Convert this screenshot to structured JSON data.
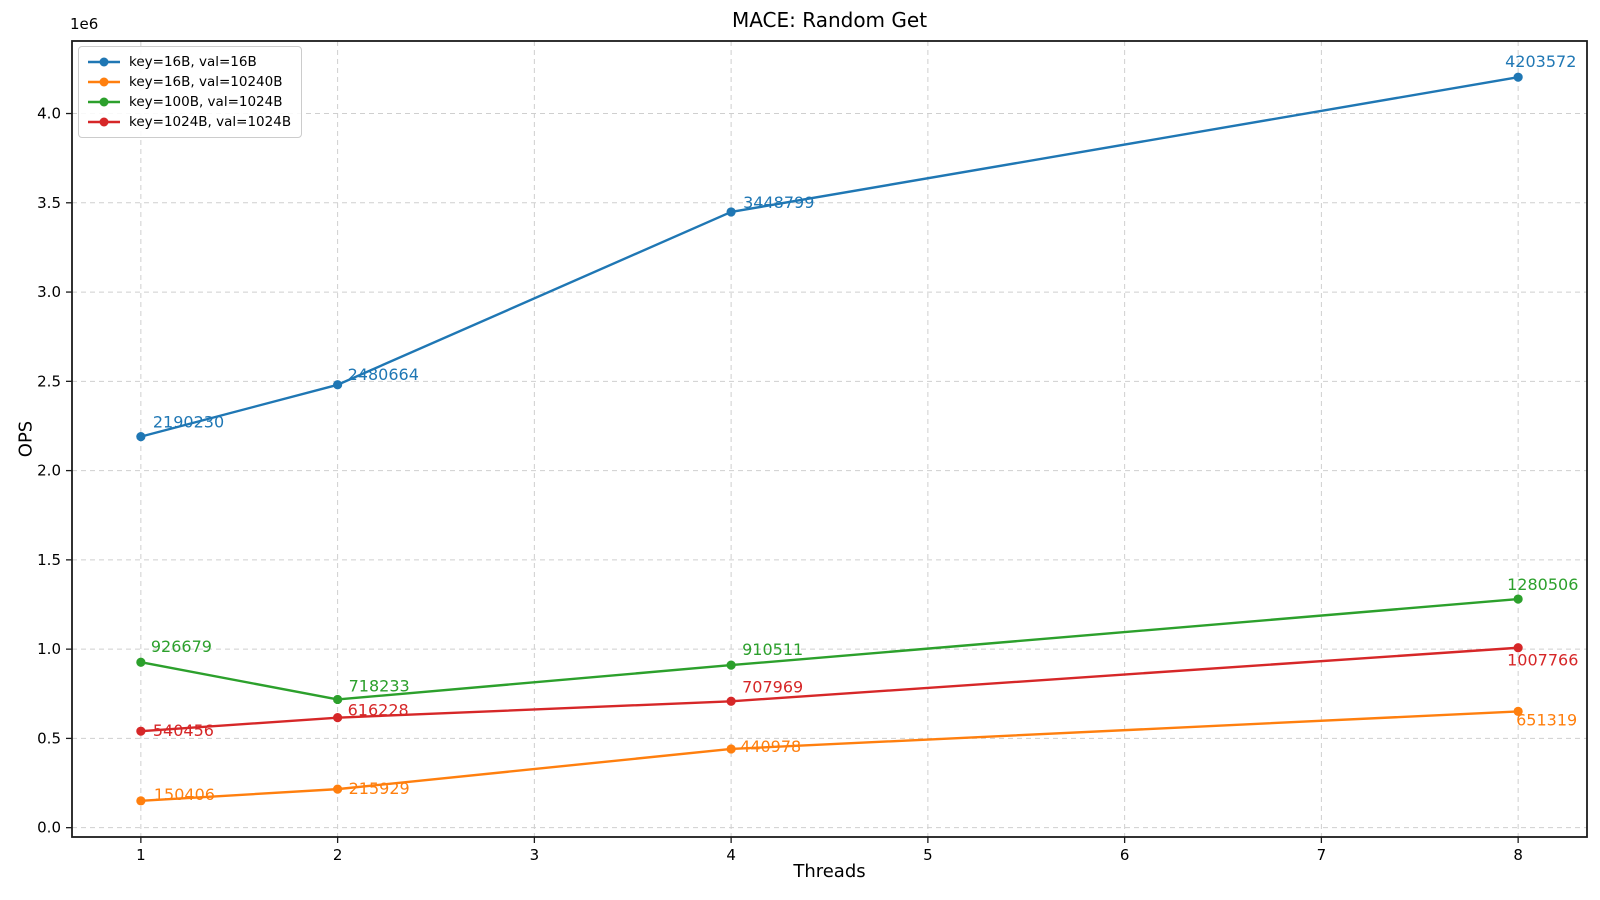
{
  "chart": {
    "title": "MACE: Random Get",
    "xlabel": "Threads",
    "ylabel": "OPS",
    "y_offset_label": "1e6"
  },
  "chart_data": {
    "type": "line",
    "title": "MACE: Random Get",
    "xlabel": "Threads",
    "ylabel": "OPS",
    "y_offset_label": "1e6",
    "x": [
      1,
      2,
      4,
      8
    ],
    "series": [
      {
        "name": "key=16B, val=16B",
        "color": "#1f77b4",
        "values": [
          2190230,
          2480664,
          3448799,
          4203572
        ]
      },
      {
        "name": "key=16B, val=10240B",
        "color": "#ff7f0e",
        "values": [
          150406,
          215929,
          440978,
          651319
        ]
      },
      {
        "name": "key=100B, val=1024B",
        "color": "#2ca02c",
        "values": [
          926679,
          718233,
          910511,
          1280506
        ]
      },
      {
        "name": "key=1024B, val=1024B",
        "color": "#d62728",
        "values": [
          540456,
          616228,
          707969,
          1007766
        ]
      }
    ],
    "point_labels": true,
    "xlim": [
      0.65,
      8.35
    ],
    "ylim": [
      -52252,
      4406230
    ],
    "x_ticks": [
      1,
      2,
      3,
      4,
      5,
      6,
      7,
      8
    ],
    "y_tick_values": [
      0,
      500000,
      1000000,
      1500000,
      2000000,
      2500000,
      3000000,
      3500000,
      4000000
    ],
    "y_tick_labels": [
      "0.0",
      "0.5",
      "1.0",
      "1.5",
      "2.0",
      "2.5",
      "3.0",
      "3.5",
      "4.0"
    ],
    "grid": true,
    "grid_style": "dashed",
    "grid_color": "#cfcfcf",
    "legend_position": "upper left",
    "background_color": "#ffffff"
  }
}
